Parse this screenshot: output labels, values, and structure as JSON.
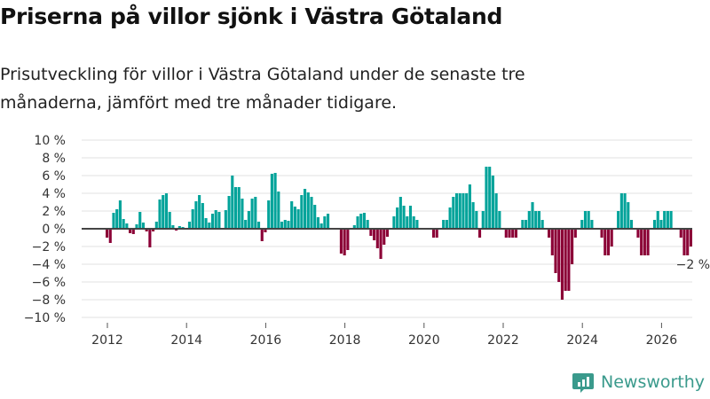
{
  "title": "Priserna på villor sjönk i Västra Götaland",
  "subtitle": "Prisutveckling för villor i Västra Götaland under de senaste tre månaderna, jämfört med tre månader tidigare.",
  "brand": {
    "name": "Newsworthy",
    "icon": "bar-chart-speech-bubble-icon",
    "color": "#3a9a8c"
  },
  "colors": {
    "positive": "#00a39a",
    "negative": "#8b0036",
    "zero_line": "#444444",
    "grid": "#e0e0e0"
  },
  "chart_data": {
    "type": "bar",
    "title": "Priserna på villor sjönk i Västra Götaland",
    "xlabel": "",
    "ylabel": "",
    "ylim": [
      -10,
      10
    ],
    "yticks": [
      10,
      8,
      6,
      4,
      2,
      0,
      -2,
      -4,
      -6,
      -8,
      -10
    ],
    "ytick_labels": [
      "10 %",
      "8 %",
      "6 %",
      "4 %",
      "2 %",
      "0 %",
      "−2 %",
      "−4 %",
      "−6 %",
      "−8 %",
      "−10 %"
    ],
    "xticks": [
      2012,
      2014,
      2016,
      2018,
      2020,
      2022,
      2024,
      2026
    ],
    "xtick_labels": [
      "2012",
      "2014",
      "2016",
      "2018",
      "2020",
      "2022",
      "2024",
      "2026"
    ],
    "grid": true,
    "start": "2012-01",
    "frequency": "monthly",
    "annotation": {
      "text": "−2 %",
      "target": "last"
    },
    "values": [
      -1.0,
      -1.6,
      1.8,
      2.2,
      3.2,
      1.1,
      0.6,
      -0.5,
      -0.6,
      0.5,
      1.9,
      0.7,
      -0.3,
      -2.1,
      -0.3,
      0.8,
      3.3,
      3.8,
      4.0,
      1.9,
      0.4,
      -0.2,
      0.3,
      0.2,
      0.1,
      0.8,
      2.2,
      3.1,
      3.8,
      2.9,
      1.2,
      0.7,
      1.7,
      2.1,
      1.9,
      0.1,
      2.1,
      3.7,
      6.0,
      4.7,
      4.7,
      3.4,
      1.0,
      2.0,
      3.4,
      3.6,
      0.8,
      -1.4,
      -0.4,
      3.2,
      6.2,
      6.3,
      4.2,
      0.8,
      1.0,
      0.9,
      3.1,
      2.5,
      2.2,
      3.8,
      4.5,
      4.1,
      3.6,
      2.7,
      1.3,
      0.6,
      1.4,
      1.7,
      0,
      0,
      0,
      -2.8,
      -3.0,
      -2.4,
      0,
      0.4,
      1.4,
      1.7,
      1.8,
      1.0,
      -0.8,
      -1.3,
      -2.2,
      -3.4,
      -1.8,
      -0.9,
      0,
      1.4,
      2.4,
      3.6,
      2.6,
      1.4,
      2.6,
      1.4,
      1.0,
      0,
      0,
      0,
      0,
      -1.0,
      -1.0,
      0,
      1.0,
      1.0,
      2.4,
      3.6,
      4.0,
      4.0,
      4.0,
      4.0,
      5.0,
      3.0,
      2.0,
      -1.0,
      2.0,
      7.0,
      7.0,
      6.0,
      4.0,
      2.0,
      0,
      -1.0,
      -1.0,
      -1.0,
      -1.0,
      0,
      1.0,
      1.0,
      2.0,
      3.0,
      2.0,
      2.0,
      1.0,
      0,
      -1.0,
      -3.0,
      -5.0,
      -6.0,
      -8.0,
      -7.0,
      -7.0,
      -4.0,
      -1.0,
      0,
      1.0,
      2.0,
      2.0,
      1.0,
      0,
      0,
      -1.0,
      -3.0,
      -3.0,
      -2.0,
      0,
      2.0,
      4.0,
      4.0,
      3.0,
      1.0,
      0,
      -1.0,
      -3.0,
      -3.0,
      -3.0,
      0,
      1.0,
      2.0,
      1.0,
      2.0,
      2.0,
      2.0,
      0,
      0,
      -1.0,
      -3.0,
      -3.0,
      -2.0
    ]
  }
}
